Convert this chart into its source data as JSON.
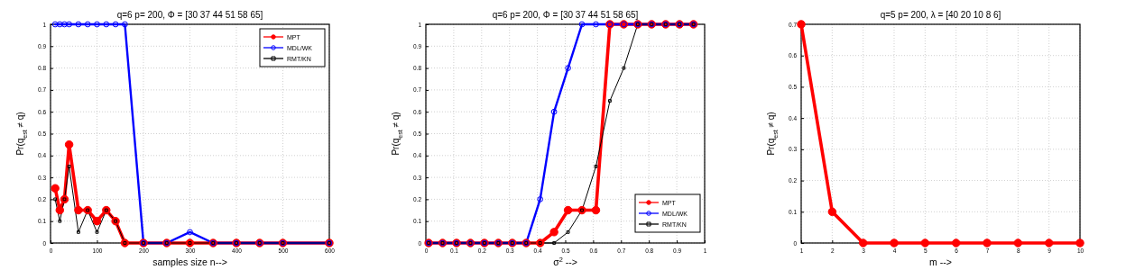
{
  "chart_data": [
    {
      "type": "line",
      "title": "q=6 p= 200, Φ = [30  37  44  51  58  65]",
      "xlabel": "samples size n-->",
      "ylabel": "Pr(q$_{est}$ ≠ q)",
      "x": [
        10,
        20,
        30,
        40,
        60,
        80,
        100,
        120,
        140,
        160,
        200,
        250,
        300,
        350,
        400,
        450,
        500,
        600
      ],
      "xlim": [
        0,
        600
      ],
      "xticks": [
        0,
        100,
        200,
        300,
        400,
        500,
        600
      ],
      "ylim": [
        0,
        1
      ],
      "yticks": [
        0,
        0.1,
        0.2,
        0.3,
        0.4,
        0.5,
        0.6,
        0.7,
        0.8,
        0.9,
        1
      ],
      "grid": true,
      "legend": "top right",
      "series": [
        {
          "name": "MPT",
          "color": "#ff0000",
          "marker": "circle",
          "values": [
            0.25,
            0.15,
            0.2,
            0.45,
            0.15,
            0.15,
            0.1,
            0.15,
            0.1,
            0,
            0,
            0,
            0,
            0,
            0,
            0,
            0,
            0
          ]
        },
        {
          "name": "MDL/WK",
          "color": "#0000ff",
          "marker": "circle",
          "values": [
            1,
            1,
            1,
            1,
            1,
            1,
            1,
            1,
            1,
            1,
            0,
            0,
            0.05,
            0,
            0,
            0,
            0,
            0
          ]
        },
        {
          "name": "RMT/KN",
          "color": "#000000",
          "marker": "square",
          "values": [
            0.2,
            0.1,
            0.2,
            0.35,
            0.05,
            0.15,
            0.05,
            0.15,
            0.1,
            0,
            0,
            0,
            0,
            0,
            0,
            0,
            0,
            0
          ]
        }
      ]
    },
    {
      "type": "line",
      "title": "q=6 p= 200, Φ = [30  37  44  51  58  65]",
      "xlabel": "σ$^{2}$ -->",
      "ylabel": "Pr(q$_{est}$ ≠ q)",
      "x": [
        0.01,
        0.06,
        0.11,
        0.16,
        0.21,
        0.26,
        0.31,
        0.36,
        0.41,
        0.46,
        0.51,
        0.56,
        0.61,
        0.66,
        0.71,
        0.76,
        0.81,
        0.86,
        0.91,
        0.96
      ],
      "xlim": [
        0,
        1
      ],
      "xticks": [
        0,
        0.1,
        0.2,
        0.3,
        0.4,
        0.5,
        0.6,
        0.7,
        0.8,
        0.9,
        1
      ],
      "ylim": [
        0,
        1
      ],
      "yticks": [
        0,
        0.1,
        0.2,
        0.3,
        0.4,
        0.5,
        0.6,
        0.7,
        0.8,
        0.9,
        1
      ],
      "grid": true,
      "legend": "bottom right",
      "series": [
        {
          "name": "MPT",
          "color": "#ff0000",
          "marker": "circle",
          "values": [
            0,
            0,
            0,
            0,
            0,
            0,
            0,
            0,
            0,
            0.05,
            0.15,
            0.15,
            0.15,
            1,
            1,
            1,
            1,
            1,
            1,
            1
          ]
        },
        {
          "name": "MDL/WK",
          "color": "#0000ff",
          "marker": "circle",
          "values": [
            0,
            0,
            0,
            0,
            0,
            0,
            0,
            0,
            0.2,
            0.6,
            0.8,
            1,
            1,
            1,
            1,
            1,
            1,
            1,
            1,
            1
          ]
        },
        {
          "name": "RMT/KN",
          "color": "#000000",
          "marker": "square",
          "values": [
            0,
            0,
            0,
            0,
            0,
            0,
            0,
            0,
            0,
            0,
            0.05,
            0.15,
            0.35,
            0.65,
            0.8,
            1,
            1,
            1,
            1,
            1
          ]
        }
      ]
    },
    {
      "type": "line",
      "title": "q=5 p= 200, λ = [40  20  10   8   6]",
      "xlabel": "m -->",
      "ylabel": "Pr(q$_{est}$ ≠ q)",
      "x": [
        1,
        2,
        3,
        4,
        5,
        6,
        7,
        8,
        9,
        10
      ],
      "xlim": [
        1,
        10
      ],
      "xticks": [
        1,
        2,
        3,
        4,
        5,
        6,
        7,
        8,
        9,
        10
      ],
      "ylim": [
        0,
        0.7
      ],
      "yticks": [
        0,
        0.1,
        0.2,
        0.3,
        0.4,
        0.5,
        0.6,
        0.7
      ],
      "grid": true,
      "legend": false,
      "series": [
        {
          "color": "#ff0000",
          "marker": "circle",
          "values": [
            0.7,
            0.1,
            0,
            0,
            0,
            0,
            0,
            0,
            0,
            0
          ]
        }
      ]
    }
  ]
}
